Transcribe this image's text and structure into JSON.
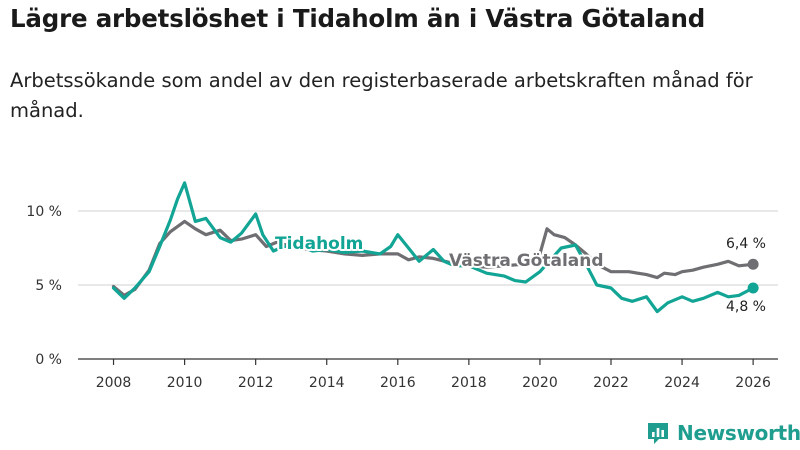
{
  "title": "Lägre arbetslöshet i Tidaholm än i Västra Götaland",
  "subtitle": "Arbetssökande som andel av den registerbaserade arbetskraften månad för månad.",
  "brand": "Newsworthy",
  "colors": {
    "tidaholm": "#12a595",
    "vastra": "#6f6e72",
    "grid": "#d9d9d9",
    "axis": "#333333"
  },
  "chart_data": {
    "type": "line",
    "title": "Lägre arbetslöshet i Tidaholm än i Västra Götaland",
    "xlabel": "",
    "ylabel": "",
    "xlim": [
      2007,
      2026.7
    ],
    "ylim": [
      0,
      12
    ],
    "x_ticks": [
      2008,
      2010,
      2012,
      2014,
      2016,
      2018,
      2020,
      2022,
      2024,
      2026
    ],
    "x_tick_labels": [
      "2008",
      "2010",
      "2012",
      "2014",
      "2016",
      "2018",
      "2020",
      "2022",
      "2024",
      "2026"
    ],
    "y_ticks": [
      0,
      5,
      10
    ],
    "y_tick_labels": [
      "0 %",
      "5 %",
      "10 %"
    ],
    "grid": true,
    "series": [
      {
        "name": "Västra Götaland",
        "label": "Västra Götaland",
        "end_label": "6,4 %",
        "x": [
          2008.0,
          2008.3,
          2008.6,
          2009.0,
          2009.3,
          2009.6,
          2010.0,
          2010.3,
          2010.6,
          2011.0,
          2011.3,
          2011.6,
          2012.0,
          2012.3,
          2012.6,
          2013.0,
          2013.5,
          2014.0,
          2014.5,
          2015.0,
          2015.5,
          2016.0,
          2016.3,
          2016.6,
          2017.0,
          2017.5,
          2018.0,
          2018.5,
          2019.0,
          2019.5,
          2020.0,
          2020.2,
          2020.4,
          2020.7,
          2021.0,
          2021.3,
          2021.6,
          2022.0,
          2022.5,
          2023.0,
          2023.3,
          2023.5,
          2023.8,
          2024.0,
          2024.3,
          2024.6,
          2025.0,
          2025.3,
          2025.6,
          2026.0
        ],
        "values": [
          4.9,
          4.3,
          4.7,
          6.0,
          7.8,
          8.6,
          9.3,
          8.8,
          8.4,
          8.7,
          8.0,
          8.1,
          8.4,
          7.6,
          7.9,
          7.6,
          7.4,
          7.3,
          7.1,
          7.0,
          7.1,
          7.1,
          6.7,
          6.9,
          6.8,
          6.5,
          6.3,
          6.2,
          6.3,
          6.4,
          7.1,
          8.8,
          8.4,
          8.2,
          7.7,
          7.1,
          6.4,
          5.9,
          5.9,
          5.7,
          5.5,
          5.8,
          5.7,
          5.9,
          6.0,
          6.2,
          6.4,
          6.6,
          6.3,
          6.4
        ]
      },
      {
        "name": "Tidaholm",
        "label": "Tidaholm",
        "end_label": "4,8 %",
        "x": [
          2008.0,
          2008.3,
          2008.6,
          2009.0,
          2009.3,
          2009.6,
          2009.8,
          2010.0,
          2010.3,
          2010.6,
          2011.0,
          2011.3,
          2011.6,
          2012.0,
          2012.2,
          2012.5,
          2012.8,
          2013.2,
          2013.6,
          2014.0,
          2014.5,
          2015.0,
          2015.5,
          2015.8,
          2016.0,
          2016.3,
          2016.6,
          2017.0,
          2017.3,
          2017.6,
          2018.0,
          2018.5,
          2019.0,
          2019.3,
          2019.6,
          2020.0,
          2020.3,
          2020.6,
          2021.0,
          2021.3,
          2021.6,
          2022.0,
          2022.3,
          2022.6,
          2023.0,
          2023.3,
          2023.6,
          2024.0,
          2024.3,
          2024.6,
          2025.0,
          2025.3,
          2025.6,
          2026.0
        ],
        "values": [
          4.8,
          4.1,
          4.8,
          5.9,
          7.6,
          9.4,
          10.8,
          11.9,
          9.3,
          9.5,
          8.2,
          7.9,
          8.5,
          9.8,
          8.4,
          7.3,
          7.6,
          7.7,
          7.3,
          7.4,
          7.2,
          7.3,
          7.1,
          7.6,
          8.4,
          7.5,
          6.6,
          7.4,
          6.6,
          6.3,
          6.3,
          5.8,
          5.6,
          5.3,
          5.2,
          5.9,
          6.7,
          7.5,
          7.7,
          6.4,
          5.0,
          4.8,
          4.1,
          3.9,
          4.2,
          3.2,
          3.8,
          4.2,
          3.9,
          4.1,
          4.5,
          4.2,
          4.3,
          4.8
        ]
      }
    ]
  }
}
